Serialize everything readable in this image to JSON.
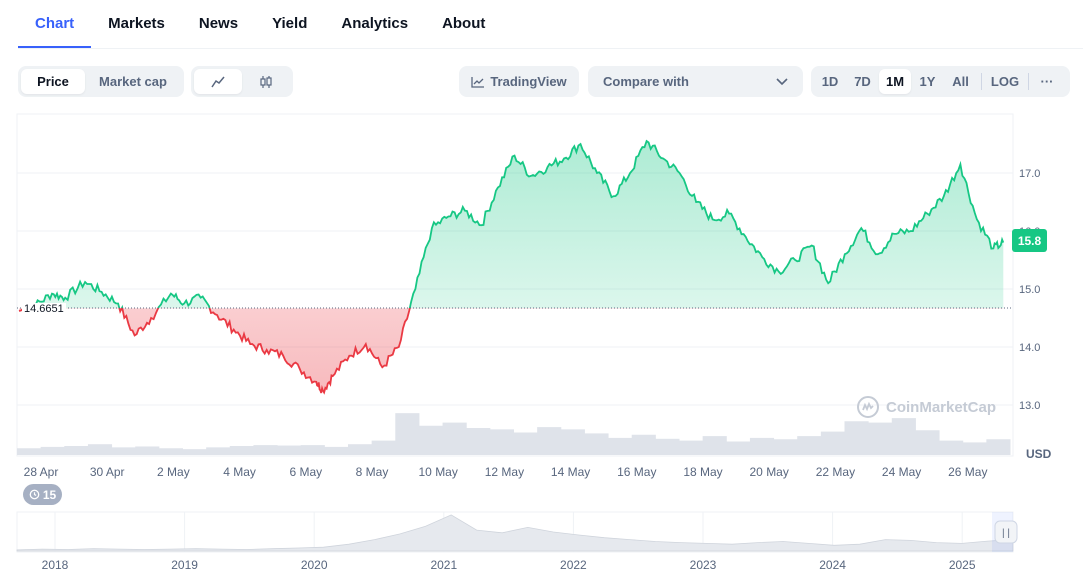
{
  "tabs": [
    "Chart",
    "Markets",
    "News",
    "Yield",
    "Analytics",
    "About"
  ],
  "toolbar": {
    "price_label": "Price",
    "market_cap_label": "Market cap",
    "tradingview_label": "TradingView",
    "compare_label": "Compare with",
    "ranges": [
      "1D",
      "7D",
      "1M",
      "1Y",
      "All"
    ],
    "log_label": "LOG",
    "more_label": "···",
    "active_range": "1M"
  },
  "chart": {
    "current_price_label": "15.8",
    "open_price_label": "14.6651",
    "currency_label": "USD",
    "watermark": "CoinMarketCap",
    "history_badge": "15",
    "x_labels": [
      "28 Apr",
      "30 Apr",
      "2 May",
      "4 May",
      "6 May",
      "8 May",
      "10 May",
      "12 May",
      "14 May",
      "16 May",
      "18 May",
      "20 May",
      "22 May",
      "24 May",
      "26 May"
    ],
    "y_labels": [
      "17.0",
      "16.0",
      "15.0",
      "14.0",
      "13.0"
    ],
    "navigator_years": [
      "2018",
      "2019",
      "2020",
      "2021",
      "2022",
      "2023",
      "2024",
      "2025"
    ]
  },
  "colors": {
    "accent": "#3861fb",
    "up": "#16c784",
    "down": "#ea3943"
  },
  "chart_data": {
    "type": "line",
    "title": "",
    "xlabel": "",
    "ylabel": "USD",
    "ylim": [
      12.6,
      17.7
    ],
    "baseline": 14.6651,
    "x_range_days": [
      0,
      30
    ],
    "series": [
      {
        "name": "Price",
        "x": [
          0,
          0.5,
          1,
          1.4,
          2,
          2.5,
          3,
          3.5,
          4,
          4.6,
          5,
          5.5,
          6,
          6.5,
          7,
          7.5,
          8,
          8.5,
          9,
          9.2,
          9.5,
          10,
          10.5,
          11,
          11.5,
          12,
          12.5,
          13,
          13.5,
          14,
          14.5,
          15,
          15.5,
          16,
          16.5,
          17,
          17.5,
          18,
          18.5,
          19,
          19.5,
          20,
          20.5,
          21,
          21.5,
          22,
          22.5,
          23,
          23.5,
          24,
          24.5,
          25,
          25.5,
          26,
          26.5,
          27,
          27.5,
          28,
          28.5,
          29,
          29.5,
          29.8
        ],
        "values": [
          14.62,
          14.72,
          14.92,
          14.85,
          15.12,
          14.95,
          14.75,
          14.2,
          14.5,
          14.92,
          14.75,
          14.85,
          14.55,
          14.3,
          14.05,
          13.95,
          13.85,
          13.62,
          13.4,
          13.25,
          13.5,
          13.85,
          14.05,
          13.65,
          14.0,
          15.0,
          16.05,
          16.25,
          16.35,
          16.1,
          16.75,
          17.3,
          16.95,
          17.1,
          17.25,
          17.5,
          17.0,
          16.6,
          17.0,
          17.55,
          17.25,
          17.0,
          16.5,
          16.2,
          16.3,
          15.9,
          15.55,
          15.3,
          15.5,
          15.75,
          15.1,
          15.6,
          16.05,
          15.6,
          15.95,
          16.0,
          16.3,
          16.6,
          17.15,
          16.2,
          15.7,
          15.8
        ]
      }
    ],
    "x_tick_labels": [
      "28 Apr",
      "30 Apr",
      "2 May",
      "4 May",
      "6 May",
      "8 May",
      "10 May",
      "12 May",
      "14 May",
      "16 May",
      "18 May",
      "20 May",
      "22 May",
      "24 May",
      "26 May"
    ],
    "y_tick_labels": [
      17.0,
      16.0,
      15.0,
      14.0,
      13.0
    ],
    "volume_values": [
      0.15,
      0.18,
      0.2,
      0.24,
      0.17,
      0.19,
      0.15,
      0.13,
      0.17,
      0.2,
      0.22,
      0.21,
      0.22,
      0.18,
      0.24,
      0.32,
      0.93,
      0.65,
      0.72,
      0.6,
      0.57,
      0.5,
      0.62,
      0.57,
      0.48,
      0.38,
      0.45,
      0.36,
      0.32,
      0.42,
      0.3,
      0.38,
      0.35,
      0.42,
      0.52,
      0.75,
      0.72,
      0.82,
      0.55,
      0.32,
      0.28,
      0.35
    ],
    "navigator_values": [
      0.03,
      0.05,
      0.04,
      0.06,
      0.05,
      0.04,
      0.05,
      0.06,
      0.05,
      0.04,
      0.06,
      0.08,
      0.1,
      0.18,
      0.3,
      0.45,
      0.65,
      0.95,
      0.55,
      0.48,
      0.62,
      0.5,
      0.42,
      0.35,
      0.3,
      0.25,
      0.22,
      0.2,
      0.18,
      0.22,
      0.25,
      0.2,
      0.15,
      0.18,
      0.3,
      0.28,
      0.22,
      0.2,
      0.26,
      0.3
    ]
  }
}
